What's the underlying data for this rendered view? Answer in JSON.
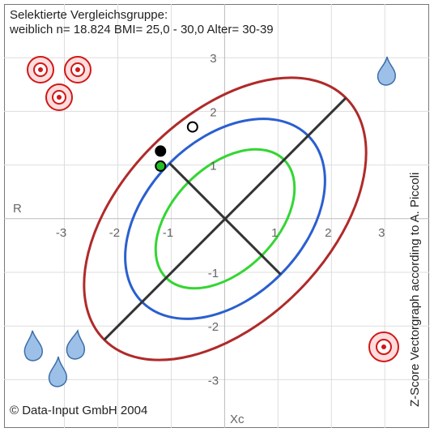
{
  "chart_data": {
    "type": "scatter",
    "title": "Selektierte Vergleichsgruppe:",
    "subtitle": "weiblich n= 18.824  BMI= 25,0 - 30,0  Alter= 30-39",
    "x_label": "Xc",
    "y_label": "R",
    "side_label": "Z-Score Vectorgraph according to A. Piccoli",
    "credit": "© Data-Input GmbH 2004",
    "xlim": [
      -4.13,
      3.83
    ],
    "ylim": [
      -3.9,
      4.0
    ],
    "xticks": [
      -3,
      -2,
      -1,
      1,
      2,
      3
    ],
    "yticks": [
      -3,
      -2,
      -1,
      1,
      2,
      3
    ],
    "grid": true,
    "series": [
      {
        "color": "#000000",
        "x": [
          -1.2
        ],
        "values": [
          1.26
        ]
      },
      {
        "color": "#22c022",
        "x": [
          -1.2
        ],
        "values": [
          0.98
        ]
      },
      {
        "color": "#ffffff",
        "x": [
          -0.6
        ],
        "values": [
          1.71
        ]
      }
    ]
  }
}
